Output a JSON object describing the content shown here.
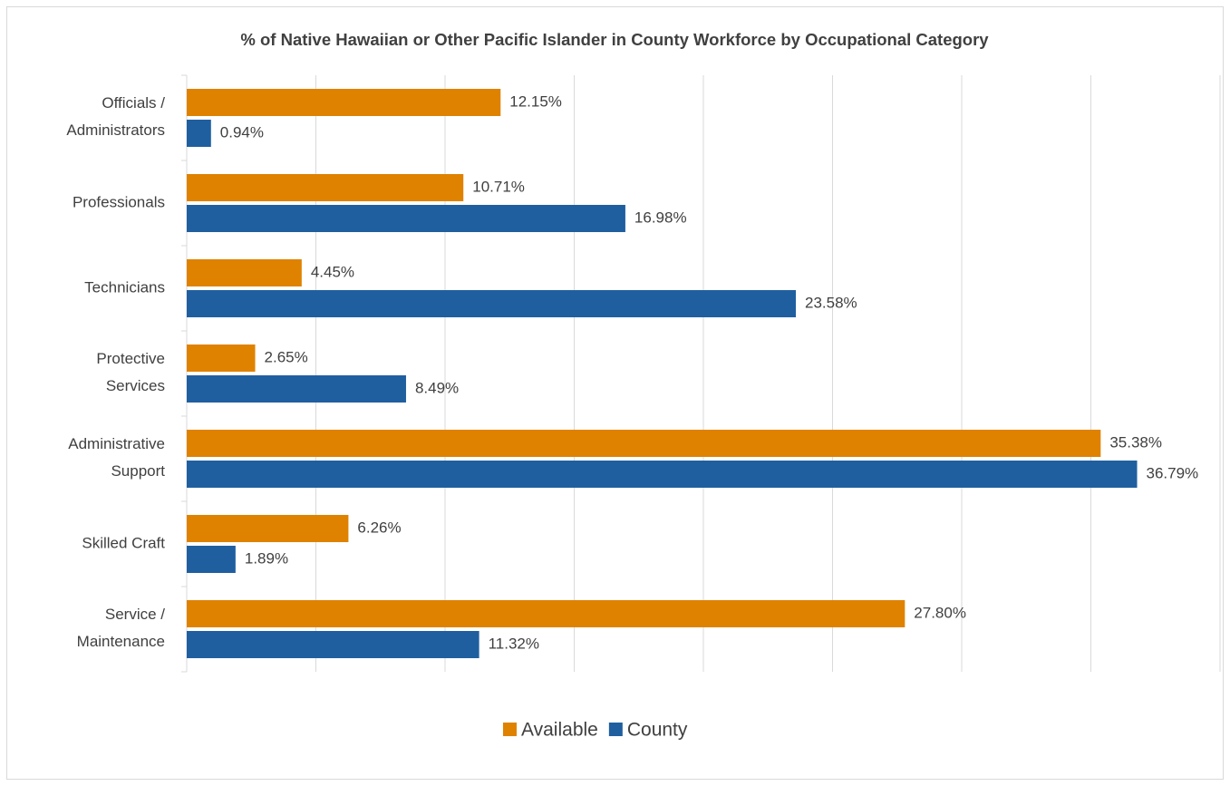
{
  "chart_data": {
    "type": "barh",
    "title": "% of Native Hawaiian or Other Pacific Islander in County Workforce by Occupational Category",
    "categories": [
      "Officials /\nAdministrators",
      "Professionals",
      "Technicians",
      "Protective\nServices",
      "Administrative\nSupport",
      "Skilled Craft",
      "Service /\nMaintenance"
    ],
    "series": [
      {
        "name": "Available",
        "color": "#df8200",
        "values": [
          12.15,
          10.71,
          4.45,
          2.65,
          35.38,
          6.26,
          27.8
        ],
        "value_labels": [
          "12.15%",
          "10.71%",
          "4.45%",
          "2.65%",
          "35.38%",
          "6.26%",
          "27.80%"
        ]
      },
      {
        "name": "County",
        "color": "#1f5fa0",
        "values": [
          0.94,
          16.98,
          23.58,
          8.49,
          36.79,
          1.89,
          11.32
        ],
        "value_labels": [
          "0.94%",
          "16.98%",
          "23.58%",
          "8.49%",
          "36.79%",
          "1.89%",
          "11.32%"
        ]
      }
    ],
    "xlim": [
      0,
      40
    ],
    "xticks": [
      0,
      5,
      10,
      15,
      20,
      25,
      30,
      35,
      40
    ],
    "grid": true,
    "legend": "bottom"
  }
}
